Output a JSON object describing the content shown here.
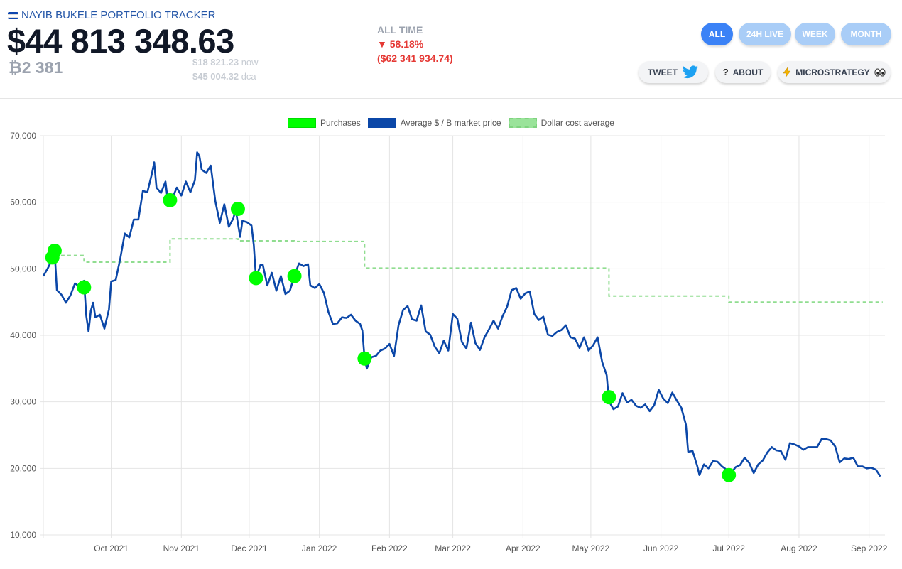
{
  "header": {
    "app_title": "NAYIB BUKELE PORTFOLIO TRACKER",
    "total_value": "$44 813 348.63",
    "btc_holdings": "₿2 381",
    "price_now": "$18 821.23",
    "price_now_unit": "now",
    "dca_price": "$45 004.32",
    "dca_unit": "dca",
    "alltime_label": "ALL TIME",
    "change_pct": "▼ 58.18%",
    "change_value": "($62 341 934.74)"
  },
  "ranges": [
    "ALL",
    "24H LIVE",
    "WEEK",
    "MONTH"
  ],
  "active_range": "ALL",
  "actions": {
    "tweet": "TWEET",
    "about": "ABOUT",
    "microstrategy": "MICROSTRATEGY"
  },
  "icons": {
    "tweet": "twitter-bird-icon",
    "about": "question-icon",
    "microstrategy": "lightning-icon",
    "eyes": "eyes-icon",
    "flag": "el-salvador-flag-icon"
  },
  "colors": {
    "price": "#0b47a8",
    "purchase": "#00ff00",
    "dca": "#90dd90",
    "accent": "#3b82f6"
  },
  "chart_data": {
    "type": "line",
    "legend_placement": "top-center",
    "grid": true,
    "legend": [
      "Purchases",
      "Average $ / Ƀ market price",
      "Dollar cost average"
    ],
    "ylim": [
      10000,
      70000
    ],
    "yticks": [
      "10,000",
      "20,000",
      "30,000",
      "40,000",
      "50,000",
      "60,000",
      "70,000"
    ],
    "xlim": [
      "2021-09-01",
      "2022-09-08"
    ],
    "xticks": [
      {
        "date": "2021-10-01",
        "label": "Oct 2021"
      },
      {
        "date": "2021-11-01",
        "label": "Nov 2021"
      },
      {
        "date": "2021-12-01",
        "label": "Dec 2021"
      },
      {
        "date": "2022-01-01",
        "label": "Jan 2022"
      },
      {
        "date": "2022-02-01",
        "label": "Feb 2022"
      },
      {
        "date": "2022-03-01",
        "label": "Mar 2022"
      },
      {
        "date": "2022-04-01",
        "label": "Apr 2022"
      },
      {
        "date": "2022-05-01",
        "label": "May 2022"
      },
      {
        "date": "2022-06-01",
        "label": "Jun 2022"
      },
      {
        "date": "2022-07-01",
        "label": "Jul 2022"
      },
      {
        "date": "2022-08-01",
        "label": "Aug 2022"
      },
      {
        "date": "2022-09-01",
        "label": "Sep 2022"
      }
    ],
    "series": [
      {
        "name": "Average $ / Ƀ market price",
        "points": [
          [
            "2021-09-01",
            48900
          ],
          [
            "2021-09-03",
            50100
          ],
          [
            "2021-09-05",
            51500
          ],
          [
            "2021-09-06",
            52600
          ],
          [
            "2021-09-07",
            46800
          ],
          [
            "2021-09-09",
            46100
          ],
          [
            "2021-09-11",
            44900
          ],
          [
            "2021-09-13",
            46000
          ],
          [
            "2021-09-15",
            47800
          ],
          [
            "2021-09-17",
            47300
          ],
          [
            "2021-09-19",
            48200
          ],
          [
            "2021-09-20",
            42900
          ],
          [
            "2021-09-21",
            40600
          ],
          [
            "2021-09-22",
            43700
          ],
          [
            "2021-09-23",
            44900
          ],
          [
            "2021-09-24",
            42700
          ],
          [
            "2021-09-26",
            43100
          ],
          [
            "2021-09-28",
            41000
          ],
          [
            "2021-09-30",
            43900
          ],
          [
            "2021-10-01",
            48100
          ],
          [
            "2021-10-03",
            48300
          ],
          [
            "2021-10-05",
            51500
          ],
          [
            "2021-10-07",
            55300
          ],
          [
            "2021-10-09",
            54700
          ],
          [
            "2021-10-11",
            57400
          ],
          [
            "2021-10-13",
            57400
          ],
          [
            "2021-10-15",
            61700
          ],
          [
            "2021-10-17",
            61500
          ],
          [
            "2021-10-19",
            64300
          ],
          [
            "2021-10-20",
            66000
          ],
          [
            "2021-10-21",
            62200
          ],
          [
            "2021-10-23",
            61400
          ],
          [
            "2021-10-25",
            63100
          ],
          [
            "2021-10-26",
            60300
          ],
          [
            "2021-10-28",
            60600
          ],
          [
            "2021-10-30",
            62200
          ],
          [
            "2021-11-01",
            61000
          ],
          [
            "2021-11-03",
            63100
          ],
          [
            "2021-11-05",
            61500
          ],
          [
            "2021-11-07",
            63300
          ],
          [
            "2021-11-08",
            67500
          ],
          [
            "2021-11-09",
            66900
          ],
          [
            "2021-11-10",
            64900
          ],
          [
            "2021-11-12",
            64400
          ],
          [
            "2021-11-14",
            65500
          ],
          [
            "2021-11-16",
            60200
          ],
          [
            "2021-11-18",
            56900
          ],
          [
            "2021-11-20",
            59700
          ],
          [
            "2021-11-22",
            56300
          ],
          [
            "2021-11-24",
            57600
          ],
          [
            "2021-11-25",
            58900
          ],
          [
            "2021-11-27",
            54800
          ],
          [
            "2021-11-28",
            57200
          ],
          [
            "2021-11-30",
            57000
          ],
          [
            "2021-12-02",
            56500
          ],
          [
            "2021-12-03",
            53600
          ],
          [
            "2021-12-04",
            48600
          ],
          [
            "2021-12-06",
            50600
          ],
          [
            "2021-12-07",
            50600
          ],
          [
            "2021-12-09",
            47500
          ],
          [
            "2021-12-11",
            49400
          ],
          [
            "2021-12-13",
            46700
          ],
          [
            "2021-12-15",
            48900
          ],
          [
            "2021-12-17",
            46200
          ],
          [
            "2021-12-19",
            46700
          ],
          [
            "2021-12-21",
            49000
          ],
          [
            "2021-12-23",
            50800
          ],
          [
            "2021-12-25",
            50400
          ],
          [
            "2021-12-27",
            50700
          ],
          [
            "2021-12-28",
            47500
          ],
          [
            "2021-12-30",
            47100
          ],
          [
            "2022-01-01",
            47700
          ],
          [
            "2022-01-03",
            46400
          ],
          [
            "2022-01-05",
            43500
          ],
          [
            "2022-01-07",
            41700
          ],
          [
            "2022-01-09",
            41800
          ],
          [
            "2022-01-11",
            42700
          ],
          [
            "2022-01-13",
            42600
          ],
          [
            "2022-01-15",
            43100
          ],
          [
            "2022-01-17",
            42200
          ],
          [
            "2022-01-19",
            41700
          ],
          [
            "2022-01-20",
            40700
          ],
          [
            "2022-01-21",
            36500
          ],
          [
            "2022-01-22",
            35000
          ],
          [
            "2022-01-24",
            36700
          ],
          [
            "2022-01-26",
            36900
          ],
          [
            "2022-01-28",
            37700
          ],
          [
            "2022-01-30",
            38000
          ],
          [
            "2022-02-01",
            38700
          ],
          [
            "2022-02-03",
            36900
          ],
          [
            "2022-02-05",
            41500
          ],
          [
            "2022-02-07",
            43800
          ],
          [
            "2022-02-09",
            44400
          ],
          [
            "2022-02-11",
            42400
          ],
          [
            "2022-02-13",
            42200
          ],
          [
            "2022-02-15",
            44500
          ],
          [
            "2022-02-17",
            40600
          ],
          [
            "2022-02-19",
            40100
          ],
          [
            "2022-02-21",
            38300
          ],
          [
            "2022-02-23",
            37300
          ],
          [
            "2022-02-25",
            39200
          ],
          [
            "2022-02-27",
            37700
          ],
          [
            "2022-03-01",
            43200
          ],
          [
            "2022-03-03",
            42500
          ],
          [
            "2022-03-05",
            39000
          ],
          [
            "2022-03-07",
            38000
          ],
          [
            "2022-03-09",
            41900
          ],
          [
            "2022-03-11",
            38800
          ],
          [
            "2022-03-13",
            37800
          ],
          [
            "2022-03-15",
            39700
          ],
          [
            "2022-03-17",
            40900
          ],
          [
            "2022-03-19",
            42200
          ],
          [
            "2022-03-21",
            41000
          ],
          [
            "2022-03-23",
            42900
          ],
          [
            "2022-03-25",
            44300
          ],
          [
            "2022-03-27",
            46800
          ],
          [
            "2022-03-29",
            47100
          ],
          [
            "2022-03-31",
            45500
          ],
          [
            "2022-04-02",
            46300
          ],
          [
            "2022-04-04",
            46600
          ],
          [
            "2022-04-06",
            43200
          ],
          [
            "2022-04-08",
            42300
          ],
          [
            "2022-04-10",
            42800
          ],
          [
            "2022-04-12",
            40100
          ],
          [
            "2022-04-14",
            39900
          ],
          [
            "2022-04-16",
            40500
          ],
          [
            "2022-04-18",
            40800
          ],
          [
            "2022-04-20",
            41500
          ],
          [
            "2022-04-22",
            39700
          ],
          [
            "2022-04-24",
            39500
          ],
          [
            "2022-04-26",
            38100
          ],
          [
            "2022-04-28",
            39700
          ],
          [
            "2022-04-30",
            37700
          ],
          [
            "2022-05-02",
            38500
          ],
          [
            "2022-05-04",
            39700
          ],
          [
            "2022-05-06",
            36000
          ],
          [
            "2022-05-08",
            34000
          ],
          [
            "2022-05-09",
            30100
          ],
          [
            "2022-05-11",
            28900
          ],
          [
            "2022-05-13",
            29300
          ],
          [
            "2022-05-15",
            31300
          ],
          [
            "2022-05-17",
            29900
          ],
          [
            "2022-05-19",
            30300
          ],
          [
            "2022-05-21",
            29400
          ],
          [
            "2022-05-23",
            29100
          ],
          [
            "2022-05-25",
            29600
          ],
          [
            "2022-05-27",
            28600
          ],
          [
            "2022-05-29",
            29500
          ],
          [
            "2022-05-31",
            31800
          ],
          [
            "2022-06-02",
            30500
          ],
          [
            "2022-06-04",
            29800
          ],
          [
            "2022-06-06",
            31400
          ],
          [
            "2022-06-08",
            30200
          ],
          [
            "2022-06-10",
            29100
          ],
          [
            "2022-06-12",
            26600
          ],
          [
            "2022-06-13",
            22500
          ],
          [
            "2022-06-15",
            22600
          ],
          [
            "2022-06-17",
            20400
          ],
          [
            "2022-06-18",
            19000
          ],
          [
            "2022-06-20",
            20600
          ],
          [
            "2022-06-22",
            20000
          ],
          [
            "2022-06-24",
            21100
          ],
          [
            "2022-06-26",
            21000
          ],
          [
            "2022-06-28",
            20300
          ],
          [
            "2022-06-30",
            19800
          ],
          [
            "2022-07-02",
            19300
          ],
          [
            "2022-07-04",
            20200
          ],
          [
            "2022-07-06",
            20500
          ],
          [
            "2022-07-08",
            21600
          ],
          [
            "2022-07-10",
            20800
          ],
          [
            "2022-07-12",
            19300
          ],
          [
            "2022-07-14",
            20600
          ],
          [
            "2022-07-16",
            21200
          ],
          [
            "2022-07-18",
            22400
          ],
          [
            "2022-07-20",
            23200
          ],
          [
            "2022-07-22",
            22700
          ],
          [
            "2022-07-24",
            22600
          ],
          [
            "2022-07-26",
            21300
          ],
          [
            "2022-07-28",
            23800
          ],
          [
            "2022-07-30",
            23600
          ],
          [
            "2022-08-01",
            23300
          ],
          [
            "2022-08-03",
            22800
          ],
          [
            "2022-08-05",
            23200
          ],
          [
            "2022-08-07",
            23200
          ],
          [
            "2022-08-09",
            23200
          ],
          [
            "2022-08-11",
            24400
          ],
          [
            "2022-08-13",
            24400
          ],
          [
            "2022-08-15",
            24200
          ],
          [
            "2022-08-17",
            23300
          ],
          [
            "2022-08-19",
            20900
          ],
          [
            "2022-08-21",
            21500
          ],
          [
            "2022-08-23",
            21400
          ],
          [
            "2022-08-25",
            21600
          ],
          [
            "2022-08-27",
            20300
          ],
          [
            "2022-08-29",
            20300
          ],
          [
            "2022-08-31",
            20000
          ],
          [
            "2022-09-02",
            20100
          ],
          [
            "2022-09-04",
            19800
          ],
          [
            "2022-09-06",
            18800
          ]
        ]
      },
      {
        "name": "Purchases",
        "points": [
          [
            "2021-09-05",
            51700
          ],
          [
            "2021-09-06",
            52700
          ],
          [
            "2021-09-19",
            47200
          ],
          [
            "2021-10-27",
            60300
          ],
          [
            "2021-11-26",
            59000
          ],
          [
            "2021-12-04",
            48600
          ],
          [
            "2021-12-21",
            48900
          ],
          [
            "2022-01-21",
            36500
          ],
          [
            "2022-05-09",
            30700
          ],
          [
            "2022-07-01",
            19000
          ]
        ]
      },
      {
        "name": "Dollar cost average",
        "points": [
          [
            "2021-09-06",
            52000
          ],
          [
            "2021-09-19",
            52000
          ],
          [
            "2021-09-19",
            51000
          ],
          [
            "2021-10-27",
            51000
          ],
          [
            "2021-10-27",
            54500
          ],
          [
            "2021-11-26",
            54500
          ],
          [
            "2021-11-26",
            54200
          ],
          [
            "2021-12-21",
            54200
          ],
          [
            "2021-12-21",
            54100
          ],
          [
            "2022-01-21",
            54100
          ],
          [
            "2022-01-21",
            50100
          ],
          [
            "2022-05-09",
            50100
          ],
          [
            "2022-05-09",
            45900
          ],
          [
            "2022-07-01",
            45900
          ],
          [
            "2022-07-01",
            45000
          ],
          [
            "2022-09-07",
            45000
          ]
        ]
      }
    ]
  }
}
